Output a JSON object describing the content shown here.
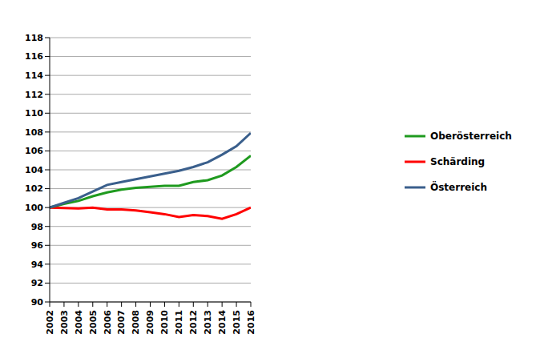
{
  "chart_data": {
    "type": "line",
    "x": [
      2002,
      2003,
      2004,
      2005,
      2006,
      2007,
      2008,
      2009,
      2010,
      2011,
      2012,
      2013,
      2014,
      2015,
      2016
    ],
    "xlim": [
      2002,
      2016
    ],
    "xticks": [
      2002,
      2003,
      2004,
      2005,
      2006,
      2007,
      2008,
      2009,
      2010,
      2011,
      2012,
      2013,
      2014,
      2015,
      2016
    ],
    "ylim": [
      90,
      118
    ],
    "yticks": [
      90,
      92,
      94,
      96,
      98,
      100,
      102,
      104,
      106,
      108,
      110,
      112,
      114,
      116,
      118
    ],
    "grid": true,
    "legend": "right",
    "series": [
      {
        "name": "Schärding",
        "color": "#ff0000",
        "values": [
          100,
          99.95,
          99.9,
          100.0,
          99.8,
          99.8,
          99.7,
          99.5,
          99.3,
          99.0,
          99.2,
          99.1,
          98.8,
          99.3,
          100.0
        ]
      },
      {
        "name": "Oberösterreich",
        "color": "#1f9a1f",
        "values": [
          100,
          100.4,
          100.7,
          101.2,
          101.6,
          101.9,
          102.1,
          102.2,
          102.3,
          102.3,
          102.7,
          102.9,
          103.4,
          104.3,
          105.5
        ]
      },
      {
        "name": "Österreich",
        "color": "#3a5f8c",
        "values": [
          100,
          100.5,
          101.0,
          101.7,
          102.4,
          102.7,
          103.0,
          103.3,
          103.6,
          103.9,
          104.3,
          104.8,
          105.6,
          106.5,
          107.9
        ]
      }
    ]
  }
}
